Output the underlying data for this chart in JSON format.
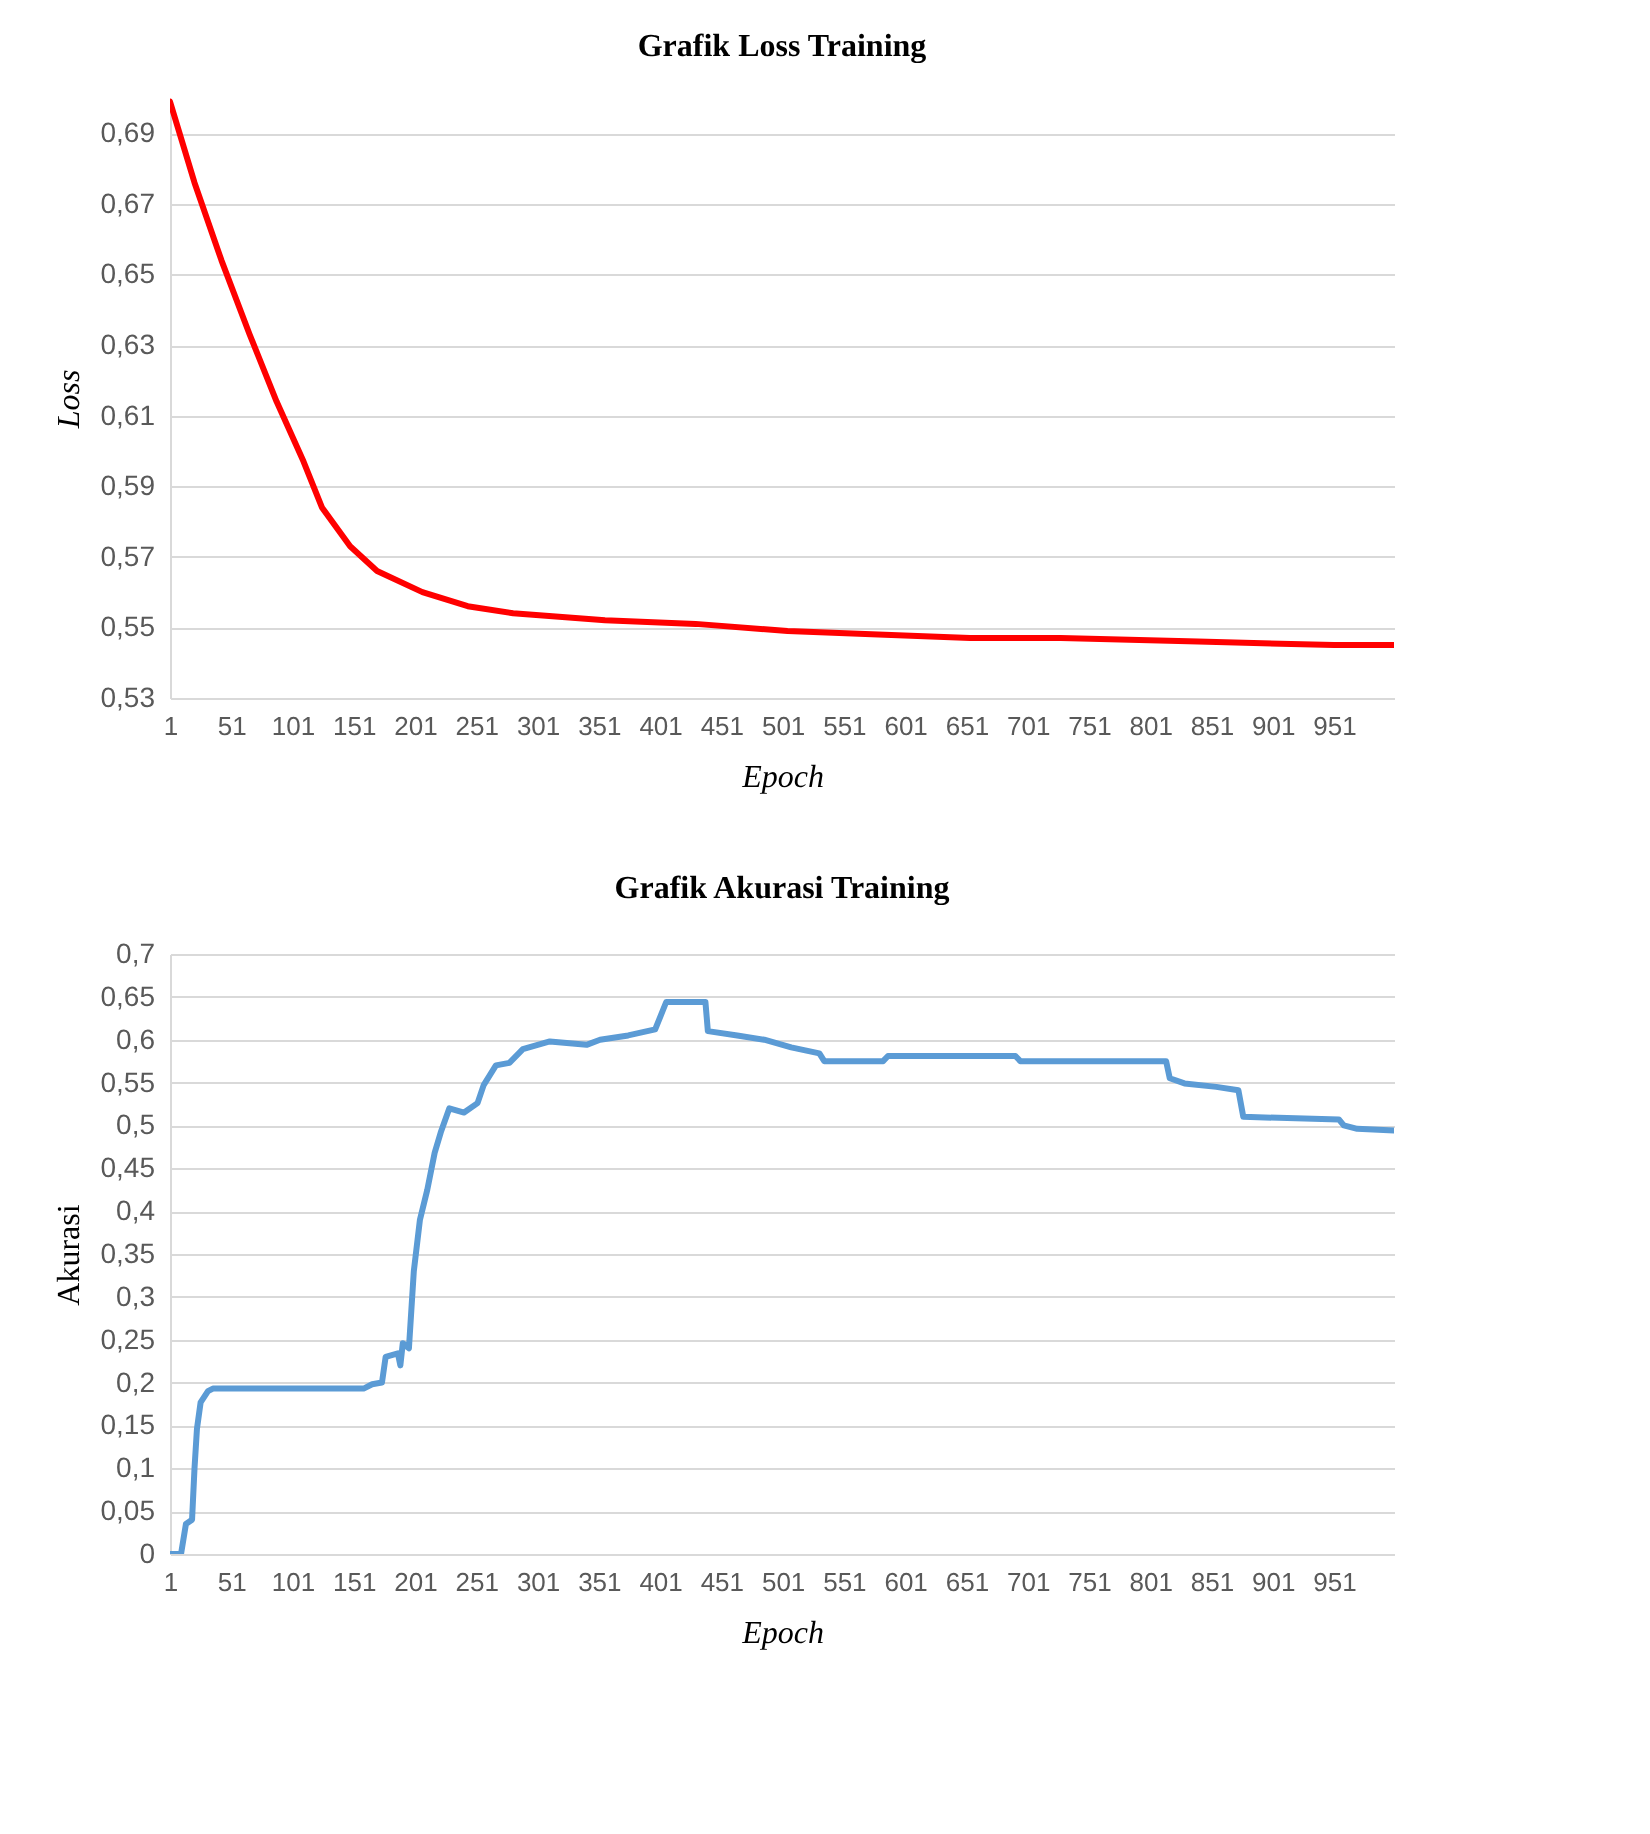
{
  "chart_data": [
    {
      "type": "line",
      "title": "Grafik Loss Training",
      "xlabel": "Epoch",
      "ylabel": "Loss",
      "grid": "y",
      "x": [
        1,
        21,
        43,
        66,
        88,
        110,
        125,
        148,
        170,
        207,
        244,
        281,
        356,
        430,
        505,
        579,
        654,
        728,
        840,
        951,
        1000
      ],
      "series": [
        {
          "color": "#ff0000",
          "values": [
            0.699,
            0.676,
            0.654,
            0.633,
            0.614,
            0.597,
            0.584,
            0.573,
            0.566,
            0.56,
            0.556,
            0.554,
            0.552,
            0.551,
            0.549,
            0.548,
            0.547,
            0.547,
            0.546,
            0.545,
            0.545
          ]
        }
      ],
      "xlim": [
        1,
        1000
      ],
      "xticks": [
        1,
        51,
        101,
        151,
        201,
        251,
        301,
        351,
        401,
        451,
        501,
        551,
        601,
        651,
        701,
        751,
        801,
        851,
        901,
        951
      ],
      "ylim": [
        0.53,
        0.7
      ],
      "yticks": [
        {
          "value": 0.53,
          "label": "0,53"
        },
        {
          "value": 0.55,
          "label": "0,55"
        },
        {
          "value": 0.57,
          "label": "0,57"
        },
        {
          "value": 0.59,
          "label": "0,59"
        },
        {
          "value": 0.61,
          "label": "0,61"
        },
        {
          "value": 0.63,
          "label": "0,63"
        },
        {
          "value": 0.65,
          "label": "0,65"
        },
        {
          "value": 0.67,
          "label": "0,67"
        },
        {
          "value": 0.69,
          "label": "0,69"
        }
      ]
    },
    {
      "type": "line",
      "title": "Grafik Akurasi Training",
      "xlabel": "Epoch",
      "ylabel": "Akurasi",
      "grid": "y",
      "x": [
        1,
        10,
        14,
        19,
        21,
        23,
        26,
        32,
        36,
        159,
        166,
        174,
        177,
        187,
        189,
        191,
        196,
        200,
        205,
        211,
        217,
        222,
        229,
        241,
        252,
        257,
        267,
        278,
        289,
        311,
        341,
        352,
        375,
        397,
        406,
        438,
        440,
        464,
        486,
        508,
        531,
        535,
        583,
        587,
        691,
        695,
        814,
        817,
        829,
        855,
        873,
        877,
        955,
        959,
        970,
        1000
      ],
      "series": [
        {
          "color": "#5b9bd5",
          "values": [
            0,
            0,
            0.035,
            0.04,
            0.1,
            0.146,
            0.177,
            0.19,
            0.193,
            0.193,
            0.198,
            0.2,
            0.23,
            0.234,
            0.22,
            0.246,
            0.24,
            0.33,
            0.39,
            0.425,
            0.468,
            0.492,
            0.52,
            0.515,
            0.526,
            0.547,
            0.57,
            0.573,
            0.589,
            0.598,
            0.594,
            0.6,
            0.605,
            0.612,
            0.644,
            0.644,
            0.61,
            0.605,
            0.6,
            0.591,
            0.584,
            0.575,
            0.575,
            0.581,
            0.581,
            0.575,
            0.575,
            0.555,
            0.549,
            0.545,
            0.541,
            0.51,
            0.507,
            0.5,
            0.496,
            0.494
          ]
        }
      ],
      "xlim": [
        1,
        1000
      ],
      "xticks": [
        1,
        51,
        101,
        151,
        201,
        251,
        301,
        351,
        401,
        451,
        501,
        551,
        601,
        651,
        701,
        751,
        801,
        851,
        901,
        951
      ],
      "ylim": [
        0,
        0.7
      ],
      "yticks": [
        0,
        {
          "value": 0.05,
          "label": "0,05"
        },
        {
          "value": 0.1,
          "label": "0,1"
        },
        {
          "value": 0.15,
          "label": "0,15"
        },
        {
          "value": 0.2,
          "label": "0,2"
        },
        {
          "value": 0.25,
          "label": "0,25"
        },
        {
          "value": 0.3,
          "label": "0,3"
        },
        {
          "value": 0.35,
          "label": "0,35"
        },
        {
          "value": 0.4,
          "label": "0,4"
        },
        {
          "value": 0.45,
          "label": "0,45"
        },
        {
          "value": 0.5,
          "label": "0,5"
        },
        {
          "value": 0.55,
          "label": "0,55"
        },
        {
          "value": 0.6,
          "label": "0,6"
        },
        {
          "value": 0.65,
          "label": "0,65"
        },
        {
          "value": 0.7,
          "label": "0,7"
        }
      ]
    }
  ]
}
